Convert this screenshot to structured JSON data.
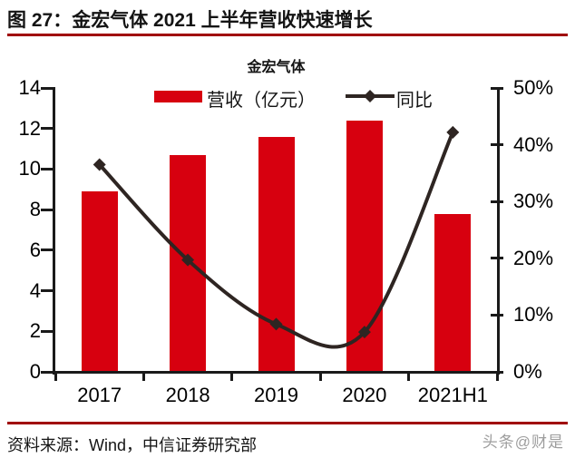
{
  "header": {
    "title": "图 27：金宏气体 2021 上半年营收快速增长"
  },
  "chart": {
    "title": "金宏气体",
    "legend": {
      "bar_label": "营收（亿元）",
      "line_label": "同比"
    }
  },
  "chart_data": {
    "type": "bar",
    "title": "金宏气体",
    "categories": [
      "2017",
      "2018",
      "2019",
      "2020",
      "2021H1"
    ],
    "series": [
      {
        "name": "营收（亿元）",
        "type": "bar",
        "axis": "left",
        "values": [
          8.9,
          10.7,
          11.6,
          12.4,
          7.8
        ]
      },
      {
        "name": "同比",
        "type": "line",
        "axis": "right",
        "values": [
          36.5,
          19.7,
          8.4,
          7.0,
          42.2
        ],
        "unit": "%"
      }
    ],
    "left_axis": {
      "min": 0,
      "max": 14,
      "step": 2
    },
    "right_axis": {
      "min": 0,
      "max": 50,
      "step": 10,
      "suffix": "%"
    },
    "legend_position": "top",
    "grid": false,
    "line_smoothed": true
  },
  "footer": {
    "source": "资料来源：Wind，中信证券研究部",
    "watermark": "头条@财是"
  },
  "colors": {
    "accent_red": "#d7000f",
    "rule_red": "#a00000",
    "line_dark": "#2e2522",
    "axis_black": "#1a1a1a"
  }
}
